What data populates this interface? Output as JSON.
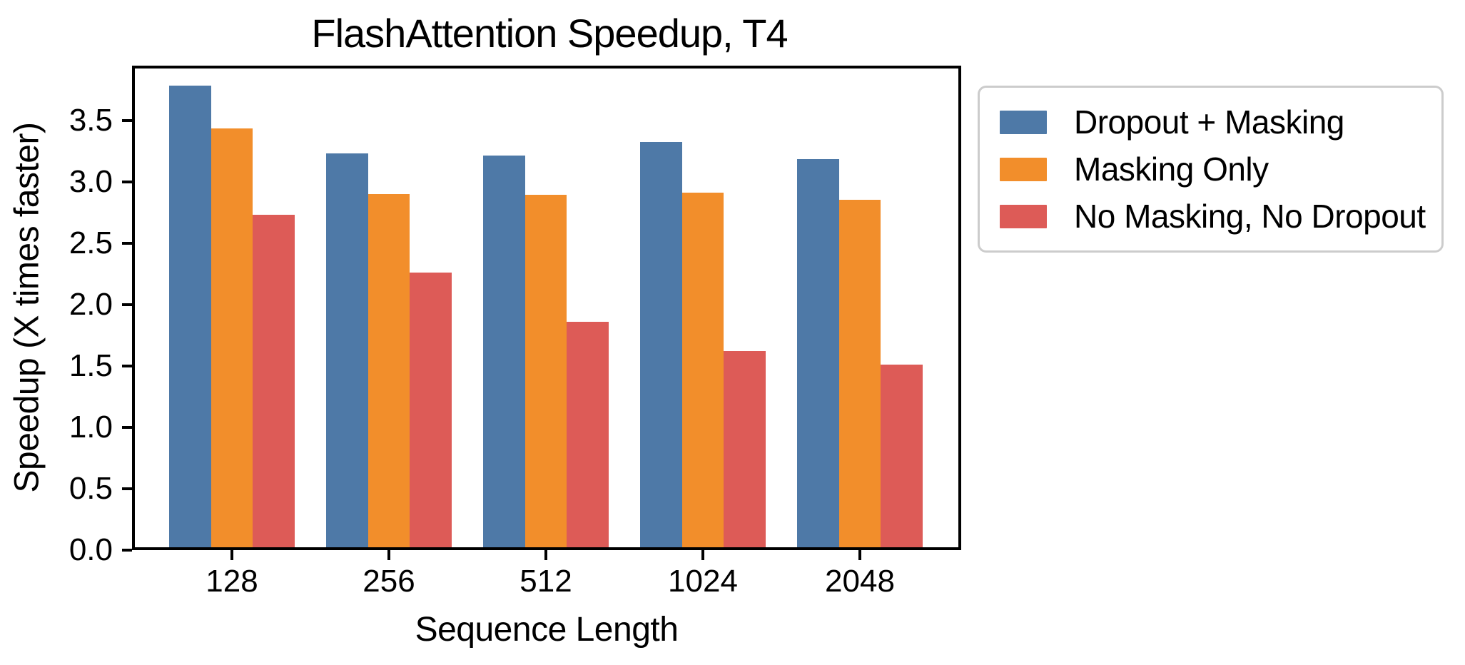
{
  "chart_data": {
    "type": "bar",
    "title": "FlashAttention Speedup, T4",
    "xlabel": "Sequence Length",
    "ylabel": "Speedup (X times faster)",
    "categories": [
      "128",
      "256",
      "512",
      "1024",
      "2048"
    ],
    "series": [
      {
        "name": "Dropout + Masking",
        "color": "#4E79A7",
        "values": [
          3.76,
          3.21,
          3.19,
          3.3,
          3.16
        ]
      },
      {
        "name": "Masking Only",
        "color": "#F28E2B",
        "values": [
          3.41,
          2.88,
          2.87,
          2.89,
          2.83
        ]
      },
      {
        "name": "No Masking, No Dropout",
        "color": "#DD5B57",
        "values": [
          2.71,
          2.24,
          1.84,
          1.6,
          1.49
        ]
      }
    ],
    "yticks": [
      0.0,
      0.5,
      1.0,
      1.5,
      2.0,
      2.5,
      3.0,
      3.5
    ],
    "ylim": [
      0,
      3.95
    ],
    "grid": false,
    "legend_position": "outside upper right",
    "axis_color": "#000000",
    "legend_border_color": "#cccccc"
  }
}
